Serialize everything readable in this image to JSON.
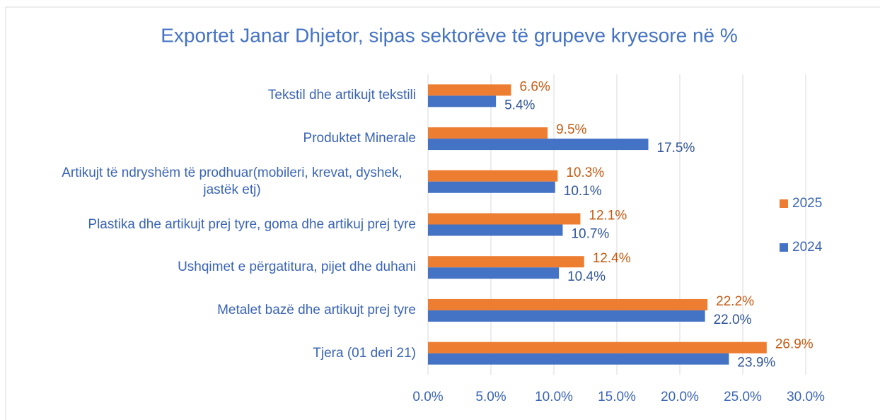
{
  "chart_data": {
    "type": "bar",
    "orientation": "horizontal",
    "title": "Exportet Janar Dhjetor, sipas sektorëve të grupeve kryesore në %",
    "categories": [
      "Tekstil dhe artikujt tekstili",
      "Produktet Minerale",
      "Artikujt të ndryshëm të prodhuar(mobileri, krevat, dyshek, jastëk etj)",
      "Plastika dhe artikujt prej tyre, goma dhe artikuj prej tyre",
      "Ushqimet e përgatitura, pijet dhe duhani",
      "Metalet bazë dhe artikujt prej tyre",
      "Tjera (01 deri 21)"
    ],
    "series": [
      {
        "name": "2025",
        "color": "#ed7d31",
        "values": [
          6.6,
          9.5,
          10.3,
          12.1,
          12.4,
          22.2,
          26.9
        ],
        "value_labels": [
          "6.6%",
          "9.5%",
          "10.3%",
          "12.1%",
          "12.4%",
          "22.2%",
          "26.9%"
        ]
      },
      {
        "name": "2024",
        "color": "#4472c4",
        "values": [
          5.4,
          17.5,
          10.1,
          10.7,
          10.4,
          22.0,
          23.9
        ],
        "value_labels": [
          "5.4%",
          "17.5%",
          "10.1%",
          "10.7%",
          "10.4%",
          "22.0%",
          "23.9%"
        ]
      }
    ],
    "xlim": [
      0,
      30
    ],
    "xticks": [
      {
        "value": 0,
        "label": "0.0%"
      },
      {
        "value": 5,
        "label": "5.0%"
      },
      {
        "value": 10,
        "label": "10.0%"
      },
      {
        "value": 15,
        "label": "15.0%"
      },
      {
        "value": 20,
        "label": "20.0%"
      },
      {
        "value": 25,
        "label": "25.0%"
      },
      {
        "value": 30,
        "label": "30.0%"
      }
    ],
    "grid": true,
    "legend": "right"
  }
}
